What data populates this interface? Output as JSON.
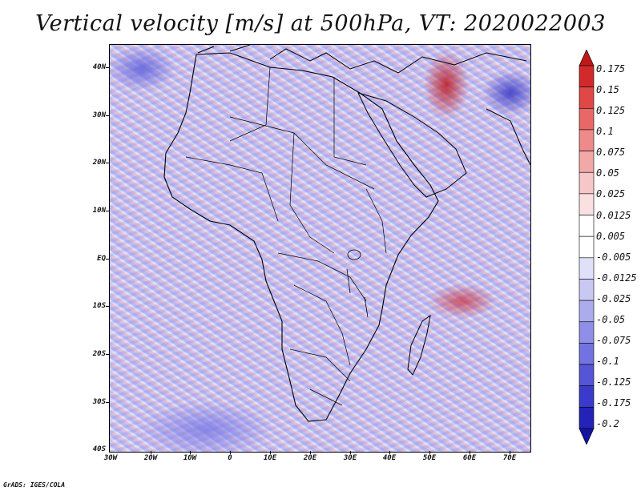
{
  "title": "Vertical velocity [m/s] at 500hPa, VT: 2020022003",
  "map": {
    "lat_labels": [
      "40N",
      "30N",
      "20N",
      "10N",
      "EQ",
      "10S",
      "20S",
      "30S",
      "40S"
    ],
    "lon_labels": [
      "30W",
      "20W",
      "10W",
      "0",
      "10E",
      "20E",
      "30E",
      "40E",
      "50E",
      "60E",
      "70E"
    ]
  },
  "colorbar": {
    "labels": [
      "0.175",
      "0.15",
      "0.125",
      "0.1",
      "0.075",
      "0.05",
      "0.025",
      "0.0125",
      "0.005",
      "-0.005",
      "-0.0125",
      "-0.025",
      "-0.05",
      "-0.075",
      "-0.1",
      "-0.125",
      "-0.175",
      "-0.2"
    ],
    "colors": [
      "#c01818",
      "#d22a2a",
      "#e04848",
      "#e86868",
      "#ef8a8a",
      "#f3a8a8",
      "#f7c6c6",
      "#fae0e0",
      "#ffffff",
      "#ffffff",
      "#e0e0f8",
      "#c8c8f3",
      "#ababee",
      "#8f8fe8",
      "#7272e0",
      "#5555d6",
      "#3a3acb",
      "#2323b8",
      "#1414a0"
    ]
  },
  "footer": "GrADS: IGES/COLA"
}
